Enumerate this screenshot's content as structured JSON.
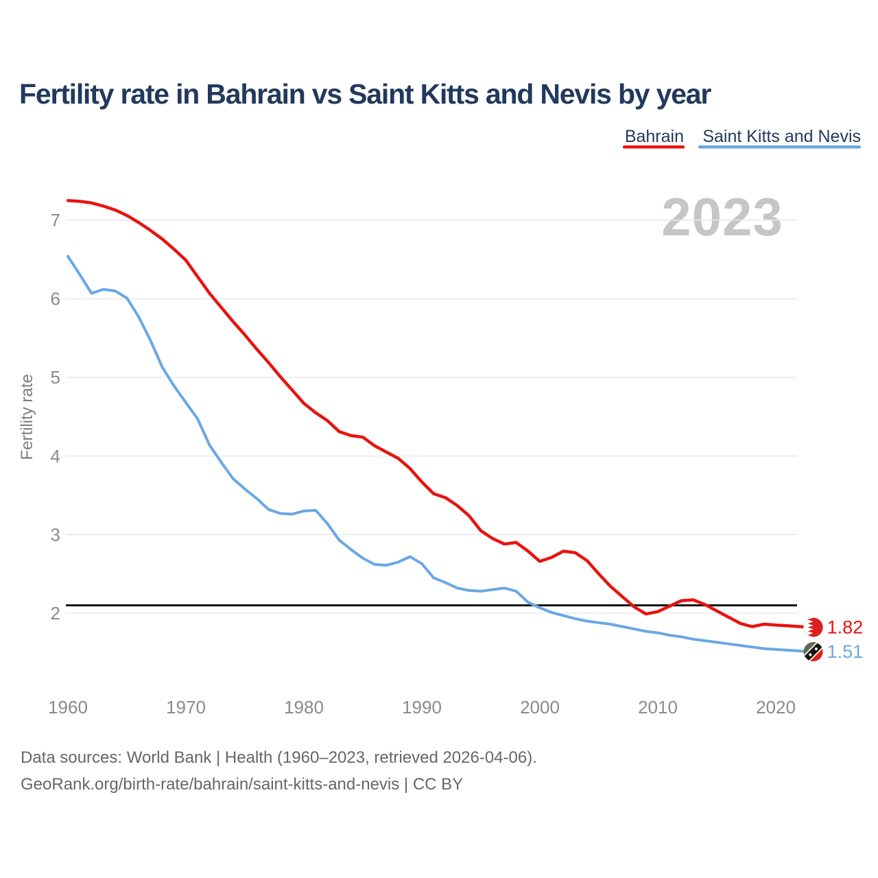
{
  "title": "Fertility rate in Bahrain vs Saint Kitts and Nevis by year",
  "watermark": "2023",
  "legend": [
    {
      "label": "Bahrain",
      "color": "#e8130e"
    },
    {
      "label": "Saint Kitts and Nevis",
      "color": "#6aa7e4"
    }
  ],
  "y_axis": {
    "label": "Fertility rate",
    "ticks": [
      2,
      3,
      4,
      5,
      6,
      7
    ]
  },
  "x_axis": {
    "ticks": [
      1960,
      1970,
      1980,
      1990,
      2000,
      2010,
      2020
    ]
  },
  "reference_line": {
    "value": 2.1,
    "color": "#111111"
  },
  "end_labels": {
    "bahrain": "1.82",
    "saint_kitts": "1.51"
  },
  "footer": {
    "line1": "Data sources: World Bank | Health (1960–2023, retrieved 2026-04-06).",
    "line2": "GeoRank.org/birth-rate/bahrain/saint-kitts-and-nevis | CC BY"
  },
  "colors": {
    "bahrain_line": "#e8130e",
    "saint_kitts_line": "#6aa7e4",
    "gridline": "#e9e9e9",
    "reference_line": "#111111",
    "title_text": "#21395c",
    "axis_text": "#8a8a8a",
    "watermark_text": "#c6c6c6",
    "footer_text": "#666666",
    "skn_flag_green": "#5e6b5a",
    "flag_red": "#dd1f1f",
    "flag_band_edge": "#f2ecca"
  },
  "chart_data": {
    "type": "line",
    "title": "Fertility rate in Bahrain vs Saint Kitts and Nevis by year",
    "xlabel": "",
    "ylabel": "Fertility rate",
    "x": {
      "start": 1960,
      "end": 2023,
      "step": 1
    },
    "xlim": [
      1960,
      2023
    ],
    "ylim": [
      1.3,
      7.4
    ],
    "grid": "horizontal",
    "legend_position": "top-right",
    "annotations": {
      "replacement_level_line": 2.1,
      "year_watermark": "2023"
    },
    "series": [
      {
        "name": "Bahrain",
        "color": "#e8130e",
        "final_value": 1.82,
        "values": [
          7.25,
          7.24,
          7.22,
          7.18,
          7.13,
          7.06,
          6.97,
          6.87,
          6.76,
          6.63,
          6.49,
          6.28,
          6.07,
          5.89,
          5.71,
          5.54,
          5.36,
          5.19,
          5.01,
          4.84,
          4.67,
          4.55,
          4.45,
          4.31,
          4.26,
          4.24,
          4.13,
          4.05,
          3.97,
          3.84,
          3.67,
          3.52,
          3.47,
          3.37,
          3.24,
          3.05,
          2.95,
          2.88,
          2.9,
          2.79,
          2.66,
          2.71,
          2.79,
          2.77,
          2.67,
          2.5,
          2.34,
          2.21,
          2.08,
          1.99,
          2.02,
          2.09,
          2.16,
          2.17,
          2.11,
          2.03,
          1.95,
          1.87,
          1.83,
          1.86,
          1.85,
          1.84,
          1.83,
          1.82
        ]
      },
      {
        "name": "Saint Kitts and Nevis",
        "color": "#6aa7e4",
        "final_value": 1.51,
        "values": [
          6.54,
          6.31,
          6.07,
          6.12,
          6.1,
          6.01,
          5.77,
          5.47,
          5.13,
          4.89,
          4.68,
          4.47,
          4.14,
          3.92,
          3.71,
          3.58,
          3.46,
          3.32,
          3.27,
          3.26,
          3.3,
          3.31,
          3.14,
          2.93,
          2.81,
          2.7,
          2.62,
          2.61,
          2.65,
          2.72,
          2.63,
          2.45,
          2.39,
          2.32,
          2.29,
          2.28,
          2.3,
          2.32,
          2.28,
          2.14,
          2.07,
          2.01,
          1.97,
          1.93,
          1.9,
          1.88,
          1.86,
          1.83,
          1.8,
          1.77,
          1.75,
          1.72,
          1.7,
          1.67,
          1.65,
          1.63,
          1.61,
          1.59,
          1.57,
          1.55,
          1.54,
          1.53,
          1.52,
          1.51
        ]
      }
    ]
  }
}
